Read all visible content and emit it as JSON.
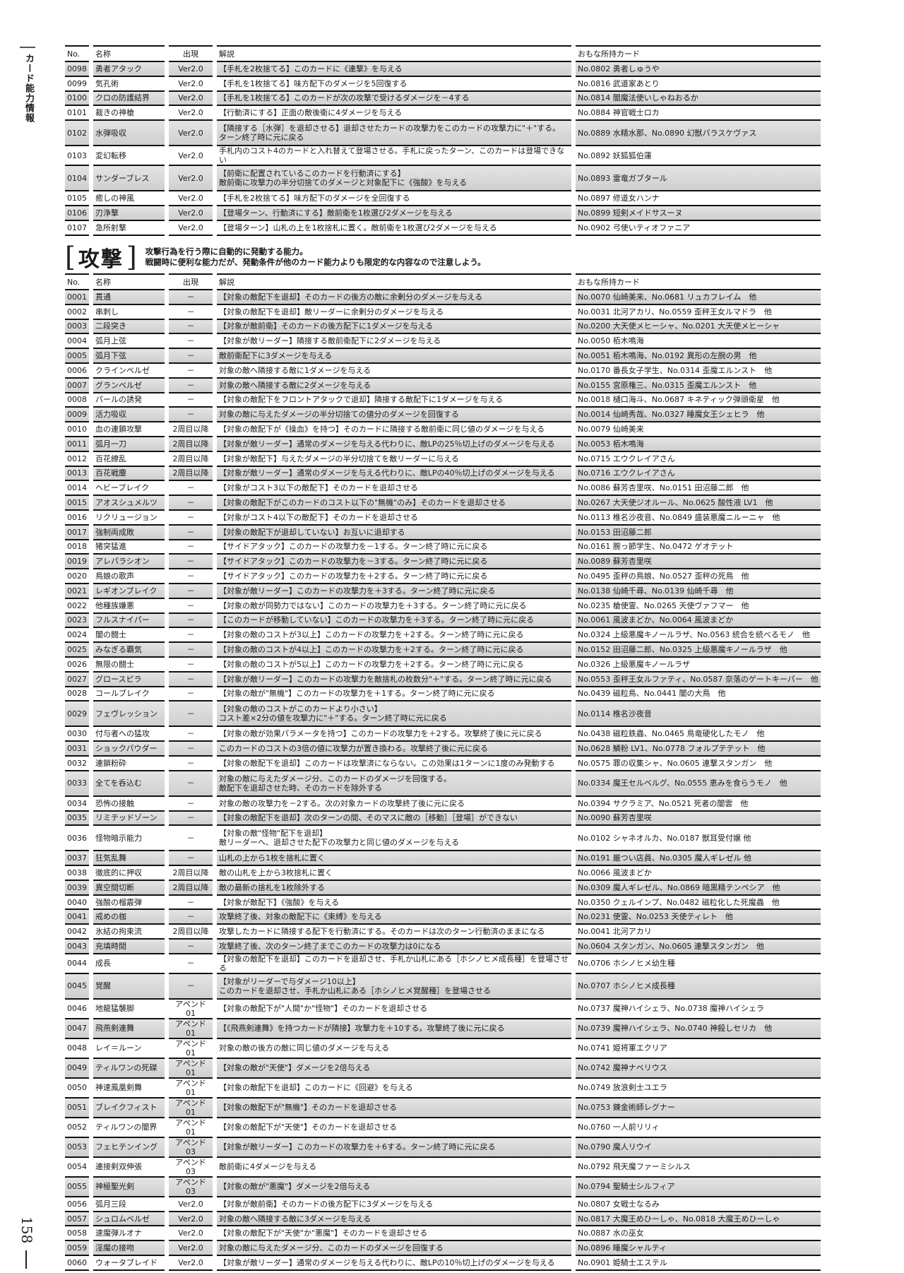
{
  "side_label": "カード能力情報",
  "page_number": "158",
  "columns": {
    "no": "No.",
    "name": "名称",
    "appear": "出現",
    "desc": "解説",
    "cards": "おもな所持カード"
  },
  "table1": {
    "rows": [
      [
        "0098",
        "勇者アタック",
        "Ver2.0",
        "【手札を2枚捨てる】このカードに《連撃》を与える",
        "No.0802 勇者しゅうや"
      ],
      [
        "0099",
        "気孔術",
        "Ver2.0",
        "【手札を1枚捨てる】味方配下のダメージを5回復する",
        "No.0816 武道家あとり"
      ],
      [
        "0100",
        "クロの防護結界",
        "Ver2.0",
        "【手札を1枚捨てる】このカードが次の攻撃で受けるダメージを－4する",
        "No.0814 闇魔法使いしゃねおるか"
      ],
      [
        "0101",
        "裁きの神槍",
        "Ver2.0",
        "【行動済にする】正面の敵後衛に4ダメージを与える",
        "No.0884 神官戦士ロカ"
      ],
      [
        "0102",
        "水弾吸収",
        "Ver2.0",
        "【隣接する［水弾］を退却させる】退却させたカードの攻撃力をこのカードの攻撃力に\"＋\"する。\nターン終了時に元に戻る",
        "No.0889 水精水那、No.0890 幻獣パラスケヴァス"
      ],
      [
        "0103",
        "変幻転移",
        "Ver2.0",
        "手札内のコスト4のカードと入れ替えて登場させる。手札に戻ったターン、このカードは登場できない",
        "No.0892 妖狐狐伯蓮"
      ],
      [
        "0104",
        "サンダーブレス",
        "Ver2.0",
        "【前衛に配置されているこのカードを行動済にする】\n敵前衛に攻撃力の半分切捨てのダメージと対象配下に《強酸》を与える",
        "No.0893 雷竜ガブタール"
      ],
      [
        "0105",
        "癒しの神風",
        "Ver2.0",
        "【手札を2枚捨てる】味方配下のダメージを全回復する",
        "No.0897 修道女ハンナ"
      ],
      [
        "0106",
        "刃浄撃",
        "Ver2.0",
        "【登場ターン、行動済にする】敵前衛を1枚選び2ダメージを与える",
        "No.0899 短剣メイドサスーヌ"
      ],
      [
        "0107",
        "急所射撃",
        "Ver2.0",
        "【登場ターン】山札の上を1枚捨札に置く。敵前衛を1枚選び2ダメージを与える",
        "No.0902 弓使いティオファニア"
      ]
    ]
  },
  "section": {
    "title": "攻撃",
    "bracket_open": "[",
    "bracket_close": "]",
    "desc_line1": "攻撃行為を行う際に自動的に発動する能力。",
    "desc_line2": "戦闘時に便利な能力だが、発動条件が他のカード能力よりも限定的な内容なので注意しよう。"
  },
  "table2": {
    "rows": [
      [
        "0001",
        "貫通",
        "－",
        "【対象の敵配下を退却】そのカードの後方の敵に余剰分のダメージを与える",
        "No.0070 仙崎美来、No.0681 リュカフレイム　他"
      ],
      [
        "0002",
        "串刺し",
        "－",
        "【対象の敵配下を退却】敵リーダーに余剰分のダメージを与える",
        "No.0031 北河アカリ、No.0559 歪秤王女ルマドラ　他"
      ],
      [
        "0003",
        "二段突き",
        "－",
        "【対象が敵前衛】そのカードの後方配下に1ダメージを与える",
        "No.0200 大天使メヒーシャ、No.0201 大天使メヒーシャ"
      ],
      [
        "0004",
        "弧月上弦",
        "－",
        "【対象が敵リーダー】隣接する敵前衛配下に2ダメージを与える",
        "No.0050 栢木鳴海"
      ],
      [
        "0005",
        "弧月下弦",
        "－",
        "敵前衛配下に3ダメージを与える",
        "No.0051 栢木鳴海、No.0192 異形の左腕の男　他"
      ],
      [
        "0006",
        "クラインベルゼ",
        "－",
        "対象の敵へ隣接する敵に1ダメージを与える",
        "No.0170 番長女子学生、No.0314 歪魔エルンスト　他"
      ],
      [
        "0007",
        "グランベルゼ",
        "－",
        "対象の敵へ隣接する敵に2ダメージを与える",
        "No.0155 宮原権三、No.0315 歪魔エルンスト　他"
      ],
      [
        "0008",
        "パールの誘発",
        "－",
        "【対象の敵配下をフロントアタックで退却】隣接する敵配下に1ダメージを与える",
        "No.0018 樋口海斗、No.0687 キネティック弾頭衛星　他"
      ],
      [
        "0009",
        "活力吸収",
        "－",
        "対象の敵に与えたダメージの半分切捨ての値分のダメージを回復する",
        "No.0014 仙崎秀哉、No.0327 睡魔女王シェヒラ　他"
      ],
      [
        "0010",
        "血の連鎖攻撃",
        "2周目以降",
        "【対象の敵配下が《操血》を持つ】そのカードに隣接する敵前衛に同じ値のダメージを与える",
        "No.0079 仙崎美来"
      ],
      [
        "0011",
        "弧月一刀",
        "2周目以降",
        "【対象が敵リーダー】通常のダメージを与える代わりに、敵LPの25％切上げのダメージを与える",
        "No.0053 栢木鳴海"
      ],
      [
        "0012",
        "百花繚乱",
        "2周目以降",
        "【対象が敵配下】与えたダメージの半分切捨てを敵リーダーに与える",
        "No.0715 エウクレイアさん"
      ],
      [
        "0013",
        "百花戦塵",
        "2周目以降",
        "【対象が敵リーダー】通常のダメージを与える代わりに、敵LPの40％切上げのダメージを与える",
        "No.0716 エウクレイアさん"
      ],
      [
        "0014",
        "ヘビーブレイク",
        "－",
        "【対象がコスト3以下の敵配下】そのカードを退却させる",
        "No.0086 蘇芳杏里咲、No.0151 田沼藤二郎　他"
      ],
      [
        "0015",
        "アオスシュメルツ",
        "－",
        "【対象の敵配下がこのカードのコスト以下の\"無機\"のみ】そのカードを退却させる",
        "No.0267 大天使ジオルール、No.0625 酸性液 LV1　他"
      ],
      [
        "0016",
        "リクリュージョン",
        "－",
        "【対象がコスト4以下の敵配下】そのカードを退却させる",
        "No.0113 椎名沙夜音、No.0849 盛装悪魔ニルーニャ　他"
      ],
      [
        "0017",
        "強制両成敗",
        "－",
        "【対象の敵配下が退却していない】お互いに退却する",
        "No.0153 田沼藤二郎"
      ],
      [
        "0018",
        "猪突猛進",
        "－",
        "【サイドアタック】このカードの攻撃力を－1する。ターン終了時に元に戻る",
        "No.0161 腕っ節学生、No.0472 ゲオテット"
      ],
      [
        "0019",
        "アレパラシオン",
        "－",
        "【サイドアタック】このカードの攻撃力を－3する。ターン終了時に元に戻る",
        "No.0089 蘇芳杏里咲"
      ],
      [
        "0020",
        "鳥娘の歌声",
        "－",
        "【サイドアタック】このカードの攻撃力を＋2する。ターン終了時に元に戻る",
        "No.0495 歪秤の鳥娘、No.0527 歪秤の死鳥　他"
      ],
      [
        "0021",
        "レギオンブレイク",
        "－",
        "【対象が敵リーダー】このカードの攻撃力を＋3する。ターン終了時に元に戻る",
        "No.0138 仙崎千尋、No.0139 仙崎千尋　他"
      ],
      [
        "0022",
        "他種族嫌悪",
        "－",
        "【対象の敵が同勢力ではない】このカードの攻撃力を＋3する。ターン終了時に元に戻る",
        "No.0235 槍使霊、No.0265 天使ヴァフマー　他"
      ],
      [
        "0023",
        "フルスナイパー",
        "－",
        "【このカードが移動していない】このカードの攻撃力を＋3する。ターン終了時に元に戻る",
        "No.0061 風波まどか、No.0064 風波まどか"
      ],
      [
        "0024",
        "闇の闘士",
        "－",
        "【対象の敵のコストが3以上】このカードの攻撃力を＋2する。ターン終了時に元に戻る",
        "No.0324 上級悪魔キノールラザ、No.0563 統合を統べるモノ　他"
      ],
      [
        "0025",
        "みなぎる覇気",
        "－",
        "【対象の敵のコストが4以上】このカードの攻撃力を＋2する。ターン終了時に元に戻る",
        "No.0152 田沼藤二郎、No.0325 上級悪魔キノールラザ　他"
      ],
      [
        "0026",
        "無限の闘士",
        "－",
        "【対象の敵のコストが5以上】このカードの攻撃力を＋2する。ターン終了時に元に戻る",
        "No.0326 上級悪魔キノールラザ"
      ],
      [
        "0027",
        "グロースピラ",
        "－",
        "【対象が敵リーダー】このカードの攻撃力を敵捨札の枚数分\"＋\"する。ターン終了時に元に戻る",
        "No.0553 歪秤王女ルファティ、No.0587 奈落のゲートキーパー　他"
      ],
      [
        "0028",
        "コールブレイク",
        "－",
        "【対象の敵が\"無機\"】このカードの攻撃力を＋1する。ターン終了時に元に戻る",
        "No.0439 磁粒鳥、No.0441 闇の大鳥　他"
      ],
      [
        "0029",
        "フェヴレッション",
        "－",
        "【対象の敵のコストがこのカードより小さい】\nコスト差×2分の値を攻撃力に\"＋\"する。ターン終了時に元に戻る",
        "No.0114 椎名沙夜音"
      ],
      [
        "0030",
        "付与者への猛攻",
        "－",
        "【対象の敵が効果パラメータを持つ】このカードの攻撃力を＋2する。攻撃終了後に元に戻る",
        "No.0438 磁粒鉄蟲、No.0465 鳥竜硬化したモノ　他"
      ],
      [
        "0031",
        "ショックパウダー",
        "－",
        "このカードのコストの3倍の値に攻撃力が置き換わる。攻撃終了後に元に戻る",
        "No.0628 鱗粉 LV1、No.0778 フォルプテテット　他"
      ],
      [
        "0032",
        "連鎖粉砕",
        "－",
        "【対象の敵配下を退却】このカードは攻撃済にならない。この効果は1ターンに1度のみ発動する",
        "No.0575 罪の収集シャ、No.0605 連撃スタンガン　他"
      ],
      [
        "0033",
        "全てを呑込む",
        "－",
        "対象の敵に与えたダメージ分、このカードのダメージを回復する。\n敵配下を退却させた時、そのカードを除外する",
        "No.0334 魔王セルベルグ、No.0555 恵みを食らうモノ　他"
      ],
      [
        "0034",
        "恐怖の接触",
        "－",
        "対象の敵の攻撃力を－2する。次の対象カードの攻撃終了後に元に戻る",
        "No.0394 サクラミア、No.0521 死者の闇雲　他"
      ],
      [
        "0035",
        "リミテッドゾーン",
        "－",
        "【対象の敵配下を退却】次のターンの間、そのマスに敵の［移動］［登場］ができない",
        "No.0090 蘇芳杏里咲"
      ],
      [
        "0036",
        "怪物暗示能力",
        "－",
        "【対象の敵\"怪物\"配下を退却】\n敵リーダーへ、退却させた配下の攻撃力と同じ値のダメージを与える",
        "No.0102 シャネオルカ、No.0187 獣耳受付嬢 他"
      ],
      [
        "0037",
        "狂気乱舞",
        "－",
        "山札の上から1枚を捨札に置く",
        "No.0191 厳つい店員、No.0305 魔人ギレゼル 他"
      ],
      [
        "0038",
        "徹底的に押収",
        "2周目以降",
        "敵の山札を上から3枚捨札に置く",
        "No.0066 風波まどか"
      ],
      [
        "0039",
        "異空間切断",
        "2周目以降",
        "敵の最新の捨札を1枚除外する",
        "No.0309 魔人ギレゼル、No.0869 暗黒精テンペシア　他"
      ],
      [
        "0040",
        "強酸の榴霰弾",
        "－",
        "【対象が敵配下】《強酸》を与える",
        "No.0350 クェルインプ、No.0482 磁粒化した死魔蟲　他"
      ],
      [
        "0041",
        "戒めの枷",
        "－",
        "攻撃終了後、対象の敵配下に《束縛》を与える",
        "No.0231 使霊、No.0253 天使ティレト　他"
      ],
      [
        "0042",
        "氷結の拘束流",
        "2周目以降",
        "攻撃したカードに隣接する配下を行動済にする。そのカードは次のターン行動済のままになる",
        "No.0041 北河アカリ"
      ],
      [
        "0043",
        "充填時間",
        "－",
        "攻撃終了後、次のターン終了までこのカードの攻撃力は0になる",
        "No.0604 スタンガン、No.0605 連撃スタンガン　他"
      ],
      [
        "0044",
        "成長",
        "－",
        "【対象の敵配下を退却】このカードを退却させ、手札か山札にある［ホシノヒメ成長種］を登場させる",
        "No.0706 ホシノヒメ幼生種"
      ],
      [
        "0045",
        "覚醒",
        "－",
        "【対象がリーダーで与ダメージ10以上】\nこのカードを退却させ、手札か山札にある［ホシノヒメ覚醒種］を登場させる",
        "No.0707 ホシノヒメ成長種"
      ],
      [
        "0046",
        "地龍猛襲脚",
        "アペンド01",
        "【対象の敵配下が\"人間\"か\"怪物\"】そのカードを退却させる",
        "No.0737 魔神ハイシェラ、No.0738 魔神ハイシェラ"
      ],
      [
        "0047",
        "飛燕剣連舞",
        "アペンド01",
        "【《飛燕剣連舞》を持つカードが隣接】攻撃力を＋10する。攻撃終了後に元に戻る",
        "No.0739 魔神ハイシェラ、No.0740 神殺しセリカ　他"
      ],
      [
        "0048",
        "レイ＝ルーン",
        "アペンド01",
        "対象の敵の後方の敵に同じ値のダメージを与える",
        "No.0741 姫将軍エクリア"
      ],
      [
        "0049",
        "ティルワンの死磔",
        "アペンド01",
        "【対象の敵が\"天使\"】ダメージを2倍与える",
        "No.0742 魔神ナベリウス"
      ],
      [
        "0050",
        "神速鳳凰剣舞",
        "アペンド01",
        "【対象の敵配下を退却】このカードに《回避》を与える",
        "No.0749 放浪剣士ユエラ"
      ],
      [
        "0051",
        "ブレイクフィスト",
        "アペンド01",
        "【対象の敵配下が\"無機\"】そのカードを退却させる",
        "No.0753 錬金術師レグナー"
      ],
      [
        "0052",
        "ティルワンの闇界",
        "アペンド01",
        "【対象の敵配下が\"天使\"】そのカードを退却させる",
        "No.0760 一人前リリィ"
      ],
      [
        "0053",
        "フェヒテンイング",
        "アペンド03",
        "【対象が敵リーダー】このカードの攻撃力を＋6する。ターン終了時に元に戻る",
        "No.0790 魔人リウイ"
      ],
      [
        "0054",
        "連接剣双伸張",
        "アペンド03",
        "敵前衛に4ダメージを与える",
        "No.0792 飛天魔ファーミシルス"
      ],
      [
        "0055",
        "神極聖光剣",
        "アペンド03",
        "【対象の敵が\"悪魔\"】ダメージを2倍与える",
        "No.0794 聖騎士シルフィア"
      ],
      [
        "0056",
        "弧月三段",
        "Ver2.0",
        "【対象が敵前衛】そのカードの後方配下に3ダメージを与える",
        "No.0807 女戦士なるみ"
      ],
      [
        "0057",
        "シュロムベルゼ",
        "Ver2.0",
        "対象の敵へ隣接する敵に3ダメージを与える",
        "No.0817 大魔王めひーしゃ、No.0818 大魔王めひーしゃ"
      ],
      [
        "0058",
        "速魔弾ルオナ",
        "Ver2.0",
        "【対象の敵配下が\"天使\"か\"悪魔\"】そのカードを退却させる",
        "No.0887 水の巫女"
      ],
      [
        "0059",
        "淫魔の接吻",
        "Ver2.0",
        "対象の敵に与えたダメージ分、このカードのダメージを回復する",
        "No.0896 睡魔シャルティ"
      ],
      [
        "0060",
        "ウォータブレイド",
        "Ver2.0",
        "【対象が敵リーダー】通常のダメージを与える代わりに、敵LPの10％切上げのダメージを与える",
        "No.0901 姫騎士エステル"
      ]
    ]
  }
}
